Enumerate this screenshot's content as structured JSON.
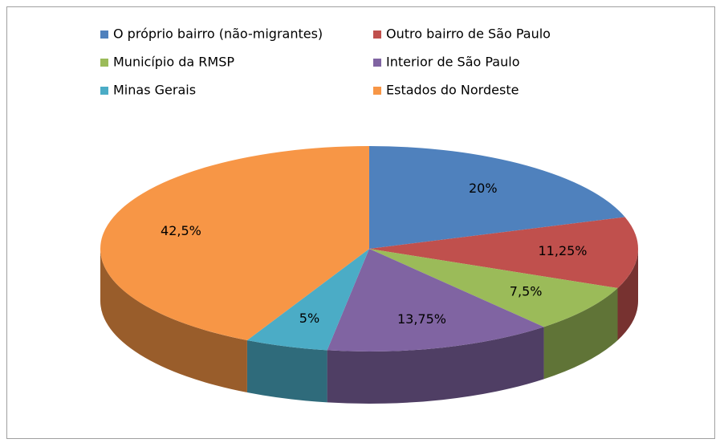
{
  "chart_data": {
    "type": "pie",
    "view": "3d",
    "categories": [
      "O próprio bairro (não-migrantes)",
      "Outro bairro de São Paulo",
      "Município da RMSP",
      "Interior de São Paulo",
      "Minas Gerais",
      "Estados do Nordeste"
    ],
    "values": [
      20,
      11.25,
      7.5,
      13.75,
      5,
      42.5
    ],
    "value_labels": [
      "20%",
      "11,25%",
      "7,5%",
      "13,75%",
      "5%",
      "42,5%"
    ],
    "colors": [
      "#4F81BD",
      "#C0504D",
      "#9BBB59",
      "#8064A2",
      "#4BACC6",
      "#F79646"
    ],
    "legend": "top"
  }
}
